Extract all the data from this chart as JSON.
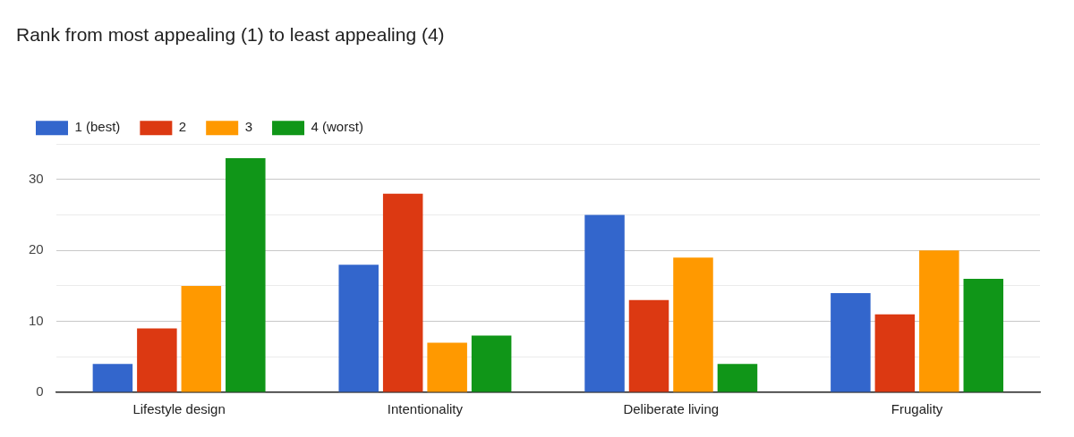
{
  "chart_data": {
    "type": "bar",
    "title": "Rank from most appealing (1) to least appealing (4)",
    "categories": [
      "Lifestyle design",
      "Intentionality",
      "Deliberate living",
      "Frugality"
    ],
    "series": [
      {
        "name": "1 (best)",
        "color": "#3366cc",
        "values": [
          4,
          18,
          25,
          14
        ]
      },
      {
        "name": "2",
        "color": "#dc3912",
        "values": [
          9,
          28,
          13,
          11
        ]
      },
      {
        "name": "3",
        "color": "#ff9900",
        "values": [
          15,
          7,
          19,
          20
        ]
      },
      {
        "name": "4 (worst)",
        "color": "#109618",
        "values": [
          33,
          8,
          4,
          16
        ]
      }
    ],
    "ylim": [
      0,
      35
    ],
    "yticks": [
      0,
      {
        "value": 5,
        "label": null
      },
      10,
      {
        "value": 15,
        "label": null
      },
      20,
      {
        "value": 25,
        "label": null
      },
      30,
      {
        "value": 35,
        "label": null
      }
    ],
    "grid": "y",
    "legend": "top left"
  }
}
